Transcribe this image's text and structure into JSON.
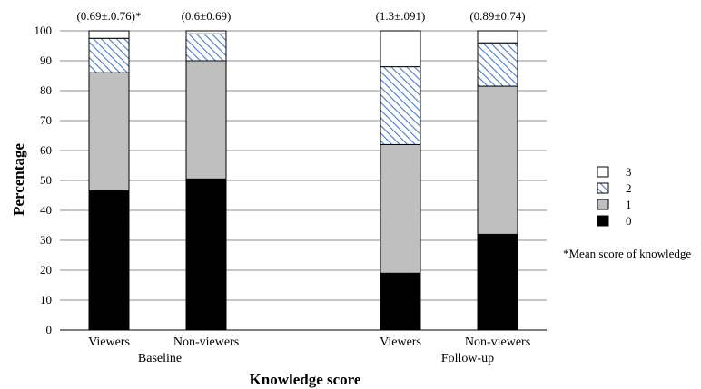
{
  "chart_data": {
    "type": "bar",
    "stacked": true,
    "title": "",
    "xlabel": "Knowledge score",
    "ylabel": "Percentage",
    "ylim": [
      0,
      100
    ],
    "yticks": [
      "0",
      "10",
      "20",
      "30",
      "40",
      "50",
      "60",
      "70",
      "80",
      "90",
      "100"
    ],
    "grid": true,
    "legend_position": "right",
    "groups": [
      "Baseline",
      "Follow-up"
    ],
    "categories": [
      "Viewers",
      "Non-viewers",
      "Viewers",
      "Non-viewers"
    ],
    "category_group": [
      0,
      0,
      1,
      1
    ],
    "annotations": [
      "(0.69±.0.76)*",
      "(0.6±0.69)",
      "(1.3±.091)",
      "(0.89±0.74)"
    ],
    "note": "*Mean score of knowledge",
    "series": [
      {
        "name": "0",
        "values": [
          46.5,
          50.5,
          19,
          32
        ]
      },
      {
        "name": "1",
        "values": [
          39.5,
          39.5,
          43,
          49.5
        ]
      },
      {
        "name": "2",
        "values": [
          11.5,
          9,
          26,
          14.5
        ]
      },
      {
        "name": "3",
        "values": [
          2.5,
          1,
          12,
          4
        ]
      }
    ],
    "series_style": [
      {
        "fill": "#000000",
        "pattern": "solid"
      },
      {
        "fill": "#bfbfbf",
        "pattern": "solid"
      },
      {
        "fill": "#4a7bc8",
        "pattern": "diagonal-hatch"
      },
      {
        "fill": "#ffffff",
        "pattern": "solid"
      }
    ]
  }
}
